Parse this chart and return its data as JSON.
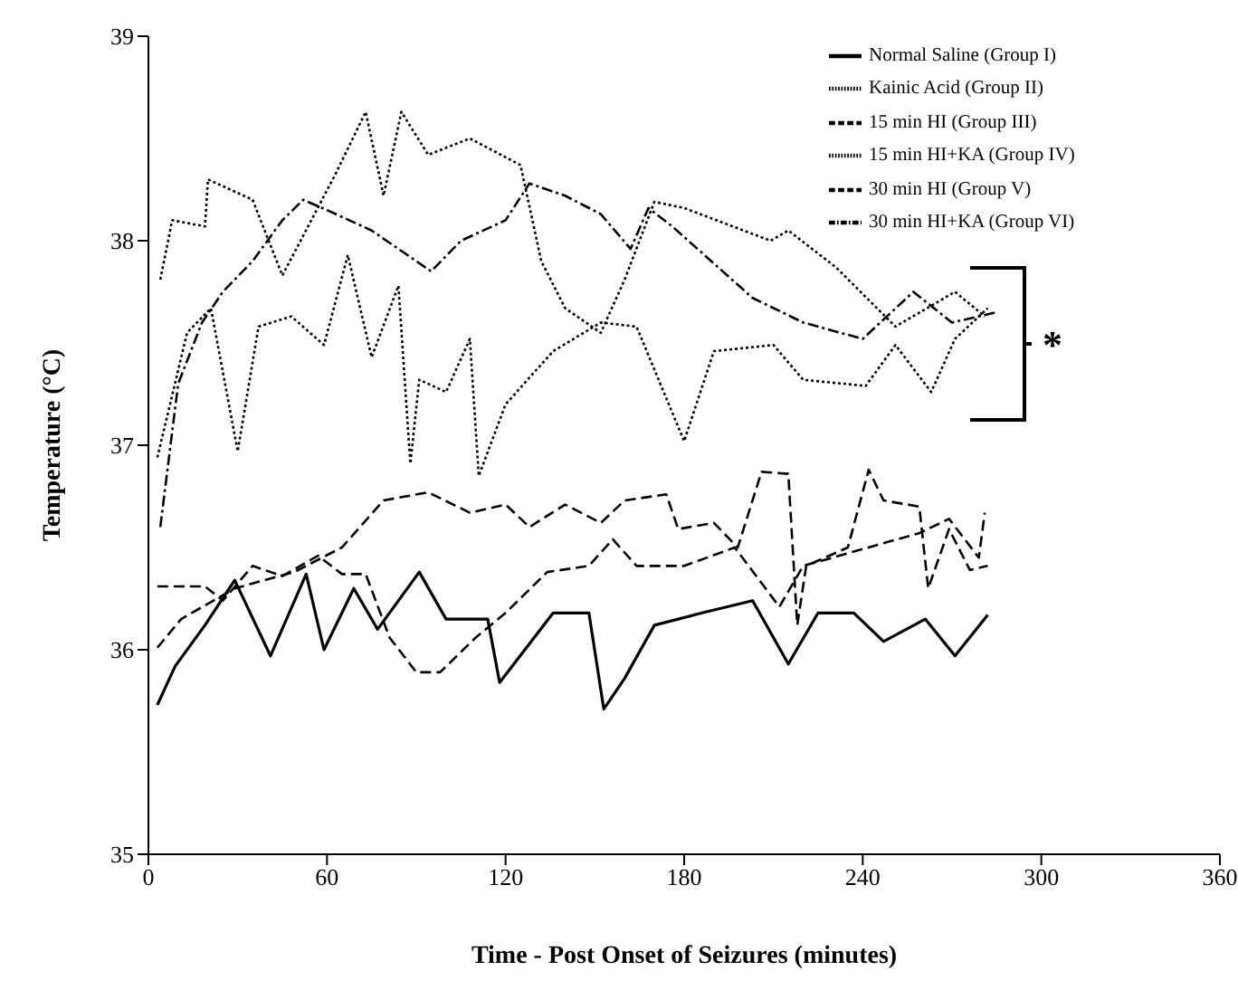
{
  "chart_data": {
    "type": "line",
    "xlabel": "Time - Post Onset of Seizures (minutes)",
    "ylabel": "Temperature (°C)",
    "xlim": [
      0,
      360
    ],
    "xticks": [
      0,
      60,
      120,
      180,
      240,
      300,
      360
    ],
    "ylim": [
      35,
      39
    ],
    "yticks": [
      35,
      36,
      37,
      38,
      39
    ],
    "grid": false,
    "legend": "top right",
    "marker": "none",
    "annotations": [
      "*"
    ],
    "series": [
      {
        "name": "Normal Saline (Group I)",
        "color": "#000000",
        "line_style": "solid",
        "x": [
          3,
          9,
          19,
          29,
          41,
          53,
          59,
          69,
          77,
          91,
          100,
          114,
          118,
          136,
          148,
          153,
          160,
          170,
          186,
          203,
          215,
          225,
          237,
          247,
          261,
          271,
          282
        ],
        "values": [
          35.73,
          35.92,
          36.12,
          36.34,
          35.97,
          36.37,
          36.0,
          36.3,
          36.1,
          36.38,
          36.15,
          36.15,
          35.84,
          36.18,
          36.18,
          35.71,
          35.86,
          36.12,
          36.18,
          36.24,
          35.93,
          36.18,
          36.18,
          36.04,
          36.15,
          35.97,
          36.17
        ]
      },
      {
        "name": "Kainic Acid (Group II)",
        "color": "#000000",
        "line_style": "dotted",
        "x": [
          3,
          13,
          21,
          30,
          37,
          48,
          59,
          67,
          75,
          84,
          88,
          91,
          100,
          108,
          111,
          120,
          136,
          152,
          164,
          180,
          190,
          210,
          220,
          241,
          251,
          263,
          271,
          282
        ],
        "values": [
          36.94,
          37.55,
          37.67,
          36.97,
          37.58,
          37.63,
          37.49,
          37.93,
          37.43,
          37.78,
          36.91,
          37.32,
          37.26,
          37.52,
          36.85,
          37.2,
          37.46,
          37.6,
          37.58,
          37.02,
          37.46,
          37.49,
          37.32,
          37.29,
          37.49,
          37.26,
          37.52,
          37.67
        ]
      },
      {
        "name": "15 min HI (Group III)",
        "color": "#000000",
        "line_style": "dashed",
        "x": [
          3,
          19,
          25,
          35,
          45,
          57,
          65,
          73,
          81,
          90,
          98,
          110,
          120,
          134,
          148,
          156,
          164,
          180,
          197,
          212,
          220,
          237,
          259,
          269,
          279,
          281
        ],
        "values": [
          36.31,
          36.31,
          36.24,
          36.41,
          36.36,
          36.46,
          36.37,
          36.37,
          36.06,
          35.89,
          35.89,
          36.06,
          36.18,
          36.38,
          36.41,
          36.54,
          36.41,
          36.41,
          36.5,
          36.21,
          36.41,
          36.48,
          36.57,
          36.64,
          36.45,
          36.67
        ]
      },
      {
        "name": "15 min HI+KA (Group IV)",
        "color": "#000000",
        "line_style": "dotted",
        "x": [
          4,
          8,
          19,
          20,
          35,
          45,
          63,
          73,
          79,
          85,
          94,
          108,
          125,
          132,
          140,
          152,
          160,
          170,
          180,
          209,
          215,
          231,
          251,
          271,
          281
        ],
        "values": [
          37.81,
          38.1,
          38.07,
          38.3,
          38.2,
          37.83,
          38.33,
          38.63,
          38.22,
          38.63,
          38.42,
          38.5,
          38.37,
          37.9,
          37.67,
          37.55,
          37.81,
          38.19,
          38.16,
          38.0,
          38.05,
          37.87,
          37.58,
          37.75,
          37.63
        ]
      },
      {
        "name": "30 min HI (Group V)",
        "color": "#000000",
        "line_style": "dashed",
        "x": [
          3,
          11,
          29,
          49,
          65,
          79,
          94,
          108,
          120,
          128,
          140,
          152,
          160,
          174,
          178,
          190,
          198,
          206,
          215,
          218,
          221,
          235,
          242,
          247,
          259,
          262,
          269,
          276,
          282
        ],
        "values": [
          36.01,
          36.15,
          36.3,
          36.38,
          36.5,
          36.73,
          36.77,
          36.67,
          36.71,
          36.6,
          36.71,
          36.62,
          36.73,
          36.76,
          36.59,
          36.62,
          36.5,
          36.87,
          36.86,
          36.12,
          36.41,
          36.5,
          36.88,
          36.73,
          36.7,
          36.3,
          36.59,
          36.39,
          36.41
        ]
      },
      {
        "name": "30 min HI+KA (Group VI)",
        "color": "#000000",
        "line_style": "dashdot",
        "x": [
          4,
          10,
          18,
          25,
          35,
          45,
          52,
          60,
          75,
          85,
          95,
          105,
          120,
          128,
          140,
          152,
          162,
          168,
          176,
          203,
          220,
          240,
          257,
          270,
          285
        ],
        "values": [
          36.6,
          37.3,
          37.6,
          37.75,
          37.9,
          38.1,
          38.2,
          38.15,
          38.05,
          37.95,
          37.85,
          38.0,
          38.1,
          38.28,
          38.22,
          38.13,
          37.96,
          38.16,
          38.07,
          37.72,
          37.6,
          37.52,
          37.75,
          37.6,
          37.65
        ]
      }
    ]
  }
}
